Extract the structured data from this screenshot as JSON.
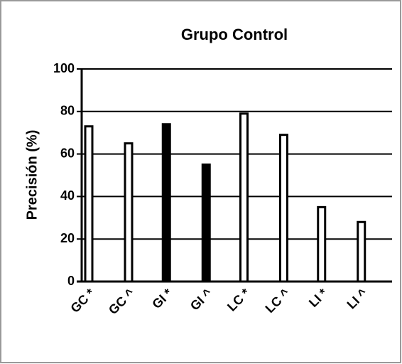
{
  "chart_data": {
    "type": "bar",
    "title": "Grupo Control",
    "ylabel": "Precisión (%)",
    "categories": [
      "GC *",
      "GC ^",
      "GI *",
      "GI ^",
      "LC *",
      "LC ^",
      "LI *",
      "LI ^"
    ],
    "values": [
      73,
      65,
      74,
      55,
      79,
      69,
      35,
      28
    ],
    "colors": [
      "#ffffff",
      "#ffffff",
      "#000000",
      "#000000",
      "#ffffff",
      "#ffffff",
      "#ffffff",
      "#ffffff"
    ],
    "edgecolor": "#000000",
    "ylim": [
      0,
      100
    ],
    "yticks": [
      0,
      20,
      40,
      60,
      80,
      100
    ],
    "grid": true
  }
}
